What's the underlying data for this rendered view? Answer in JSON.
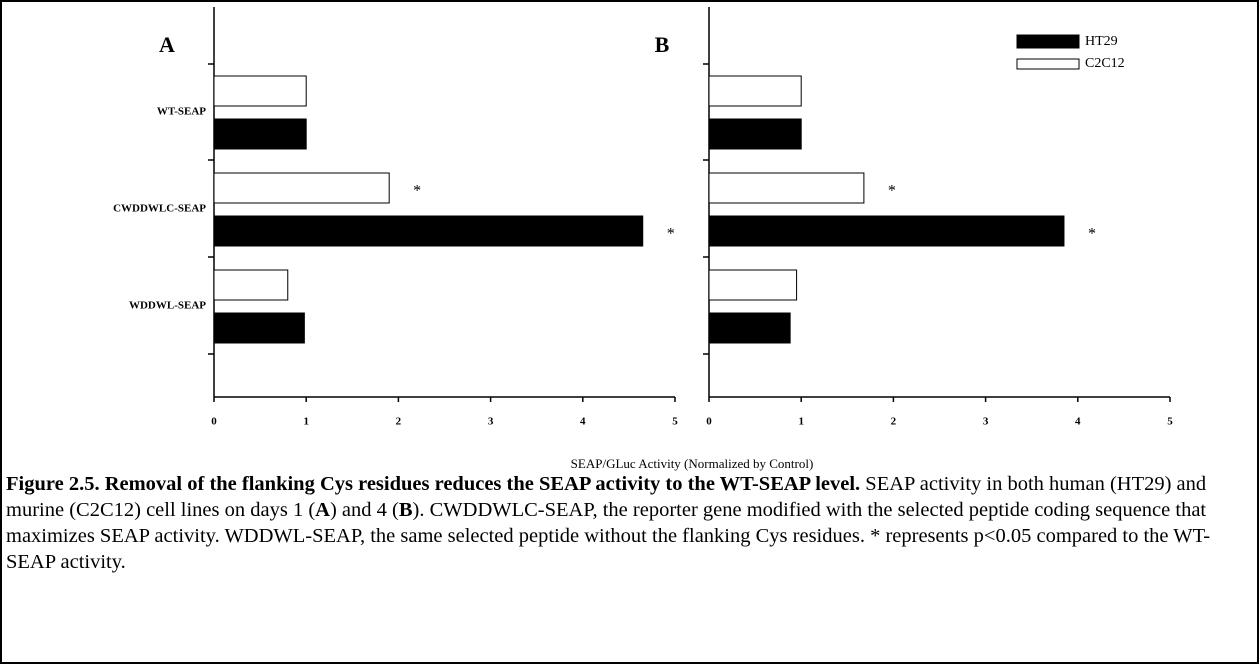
{
  "chart_data": [
    {
      "type": "barh",
      "title": "A",
      "categories": [
        "WT-SEAP",
        "CWDDWLC-SEAP",
        "WDDWL-SEAP"
      ],
      "series": [
        {
          "color": "#000000",
          "values": [
            1.0,
            4.65,
            0.98
          ],
          "marks": [
            null,
            "*",
            null
          ]
        },
        {
          "color": "#ffffff",
          "values": [
            1.0,
            1.9,
            0.8
          ],
          "marks": [
            null,
            "*",
            null
          ]
        }
      ],
      "xlim": [
        0,
        5
      ],
      "xticks": [
        0,
        1,
        2,
        3,
        4,
        5
      ]
    },
    {
      "type": "barh",
      "title": "B",
      "series": [
        {
          "name": "HT29",
          "color": "#000000",
          "values": [
            1.0,
            3.85,
            0.88
          ],
          "marks": [
            null,
            "*",
            null
          ]
        },
        {
          "name": "C2C12",
          "color": "#ffffff",
          "values": [
            1.0,
            1.68,
            0.95
          ],
          "marks": [
            null,
            "*",
            null
          ]
        }
      ],
      "xlim": [
        0,
        5
      ],
      "xticks": [
        0,
        1,
        2,
        3,
        4,
        5
      ],
      "legend": "upper right"
    }
  ],
  "xlabel": "SEAP/GLuc Activity (Normalized by Control)",
  "caption": [
    {
      "text": "Figure 2.5. Removal of the flanking Cys residues reduces the SEAP activity to the WT-SEAP level.",
      "bold": true
    },
    {
      "text": " SEAP activity in both human (HT29) and murine (C2C12) cell lines on days 1 ("
    },
    {
      "text": "A",
      "bold": true
    },
    {
      "text": ") and 4 ("
    },
    {
      "text": "B",
      "bold": true
    },
    {
      "text": "). CWDDWLC-SEAP, the reporter gene modified with the selected peptide coding sequence that maximizes SEAP activity. WDDWL-SEAP, the same selected peptide without the flanking Cys residues. * represents p<0.05 compared to the WT-SEAP activity."
    }
  ]
}
